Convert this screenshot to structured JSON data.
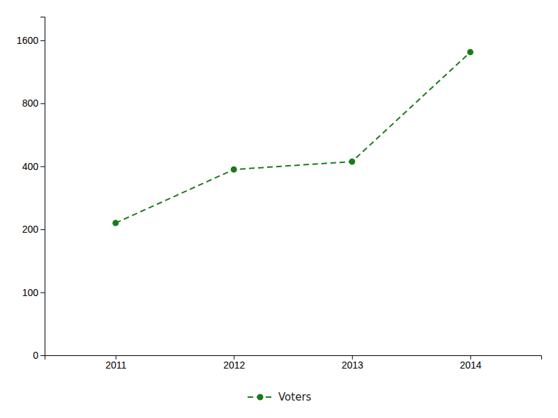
{
  "chart_data": {
    "type": "line",
    "x": [
      2011,
      2012,
      2013,
      2014
    ],
    "series": [
      {
        "name": "Voters",
        "color": "#1a7a1a",
        "values": [
          220,
          390,
          430,
          1450
        ],
        "marker": "circle",
        "line_style": "dashed"
      }
    ],
    "xlim": [
      2010.4,
      2014.6
    ],
    "xticks": [
      2011,
      2012,
      2013,
      2014
    ],
    "ylim": [
      0,
      1900
    ],
    "yticks": [
      0,
      100,
      200,
      400,
      800,
      1600
    ],
    "grid": false,
    "legend": "bottom"
  }
}
